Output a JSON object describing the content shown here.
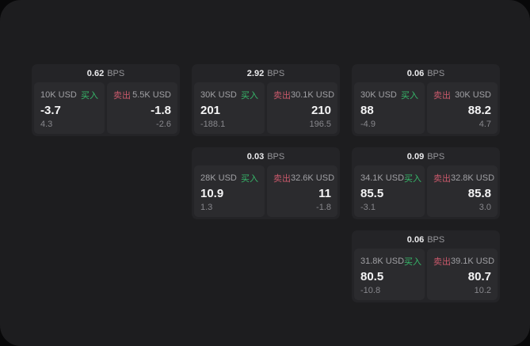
{
  "labels": {
    "bps_unit": "BPS",
    "buy": "买入",
    "sell": "卖出"
  },
  "colors": {
    "outer_background": "#080809",
    "panel_background": "#1d1d1f",
    "card_background": "#242427",
    "pane_background": "#2b2b2e",
    "buy_green": "#36b86a",
    "sell_red": "#c9596b",
    "primary_text": "#f4f4f5",
    "muted_text": "#96969a"
  },
  "cards": [
    {
      "bps": "0.62",
      "buy": {
        "amount": "10K USD",
        "value": "-3.7",
        "delta": "4.3"
      },
      "sell": {
        "amount": "5.5K USD",
        "value": "-1.8",
        "delta": "-2.6"
      }
    },
    {
      "bps": "2.92",
      "buy": {
        "amount": "30K USD",
        "value": "201",
        "delta": "-188.1"
      },
      "sell": {
        "amount": "30.1K USD",
        "value": "210",
        "delta": "196.5"
      }
    },
    {
      "bps": "0.06",
      "buy": {
        "amount": "30K USD",
        "value": "88",
        "delta": "-4.9"
      },
      "sell": {
        "amount": "30K USD",
        "value": "88.2",
        "delta": "4.7"
      }
    },
    {
      "bps": "0.03",
      "buy": {
        "amount": "28K USD",
        "value": "10.9",
        "delta": "1.3"
      },
      "sell": {
        "amount": "32.6K USD",
        "value": "11",
        "delta": "-1.8"
      }
    },
    {
      "bps": "0.09",
      "buy": {
        "amount": "34.1K USD",
        "value": "85.5",
        "delta": "-3.1"
      },
      "sell": {
        "amount": "32.8K USD",
        "value": "85.8",
        "delta": "3.0"
      }
    },
    {
      "bps": "0.06",
      "buy": {
        "amount": "31.8K USD",
        "value": "80.5",
        "delta": "-10.8"
      },
      "sell": {
        "amount": "39.1K USD",
        "value": "80.7",
        "delta": "10.2"
      }
    }
  ]
}
